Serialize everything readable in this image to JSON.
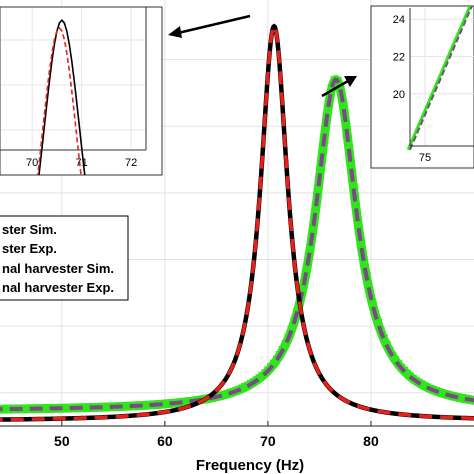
{
  "chart_data": {
    "type": "line",
    "title": "",
    "xlabel": "Frequency (Hz)",
    "ylabel": "",
    "xlim": [
      44,
      90
    ],
    "x_ticks": [
      "50",
      "60",
      "70",
      "80"
    ],
    "grid": true,
    "legend": {
      "placement": "middle-left"
    },
    "series": [
      {
        "name": "ster Sim.",
        "color": "#000000",
        "style": "solid",
        "peak_frequency": 70.6
      },
      {
        "name": "ster Exp.",
        "color": "#e8201c",
        "style": "dashed",
        "peak_frequency": 70.6
      },
      {
        "name": "nal harvester Sim.",
        "color": "#2fe61a",
        "style": "triangle-marker",
        "peak_frequency": 76.6
      },
      {
        "name": "nal harvester Exp.",
        "color": "#7b4a86",
        "style": "dashed",
        "peak_frequency": 76.6
      }
    ],
    "insets": [
      {
        "position": "top-left",
        "x_ticks": [
          "70",
          "71",
          "72"
        ],
        "xlim": [
          69.35,
          72.3
        ]
      },
      {
        "position": "top-right",
        "x_ticks": [
          "75"
        ],
        "y_ticks": [
          "24",
          "22",
          "20"
        ],
        "xlim": [
          74.2,
          77.0
        ],
        "ylim": [
          17.2,
          24.6
        ]
      }
    ]
  }
}
